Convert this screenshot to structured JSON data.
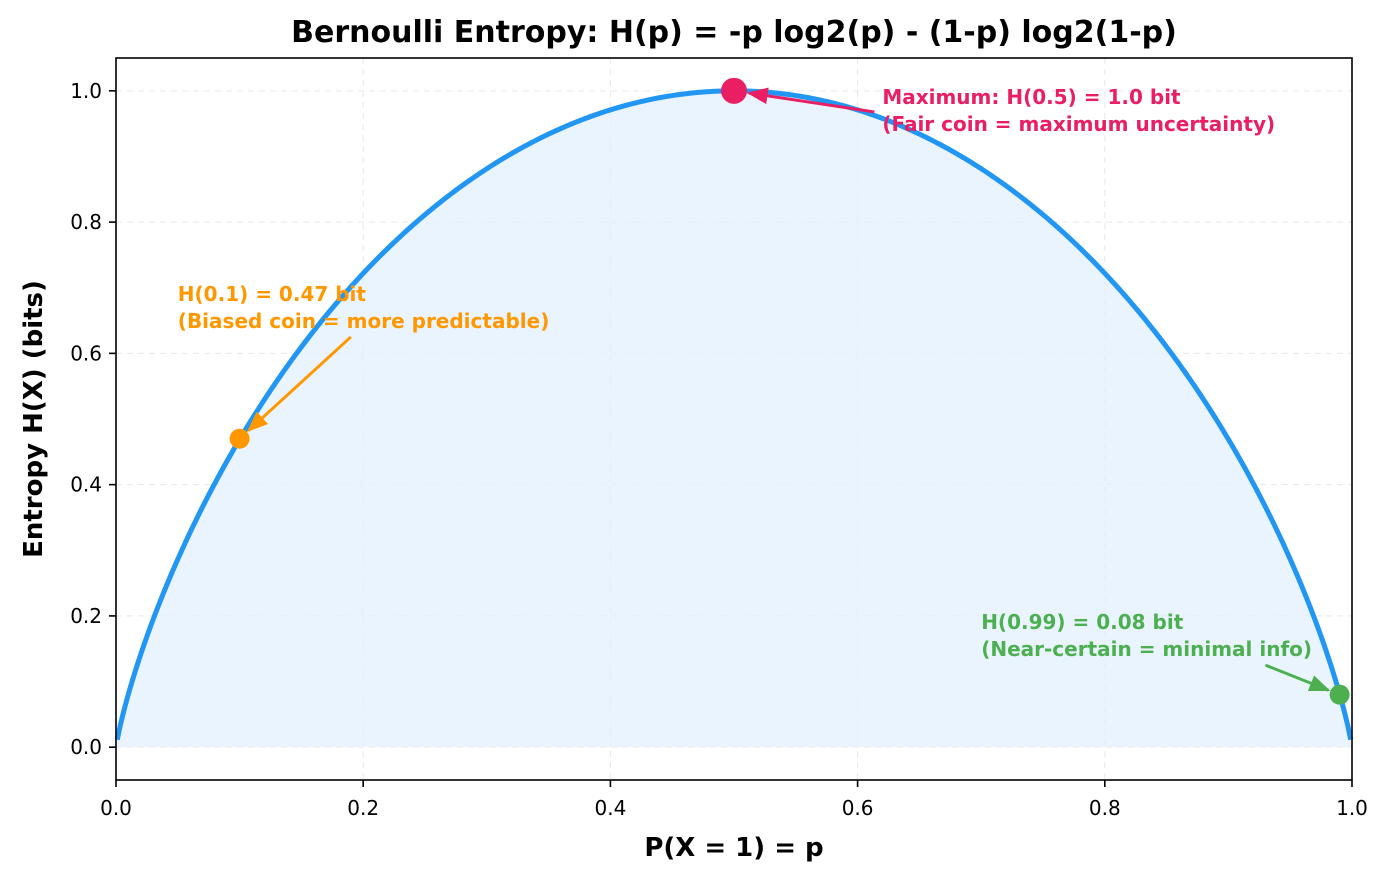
{
  "chart_data": {
    "type": "area",
    "title": "Bernoulli Entropy: H(p) = -p log2(p) - (1-p) log2(1-p)",
    "xlabel": "P(X = 1) = p",
    "ylabel": "Entropy H(X)  (bits)",
    "xlim": [
      0.0,
      1.0
    ],
    "ylim": [
      -0.05,
      1.05
    ],
    "xticks": [
      0.0,
      0.2,
      0.4,
      0.6,
      0.8,
      1.0
    ],
    "xtick_labels": [
      "0.0",
      "0.2",
      "0.4",
      "0.6",
      "0.8",
      "1.0"
    ],
    "yticks": [
      0.0,
      0.2,
      0.4,
      0.6,
      0.8,
      1.0
    ],
    "ytick_labels": [
      "0.0",
      "0.2",
      "0.4",
      "0.6",
      "0.8",
      "1.0"
    ],
    "grid": true,
    "curve": {
      "function": "bernoulli_entropy",
      "p_range": [
        0.001,
        0.999
      ],
      "color": "#2196F3",
      "fill_color": "#e3f0fd"
    },
    "annotations": [
      {
        "id": "max",
        "p": 0.5,
        "h": 1.0,
        "color": "#E91E63",
        "lines": [
          "Maximum: H(0.5) = 1.0 bit",
          "(Fair coin = maximum uncertainty)"
        ],
        "text_xy": [
          0.62,
          0.98
        ]
      },
      {
        "id": "biased",
        "p": 0.1,
        "h": 0.47,
        "color": "#FF9800",
        "lines": [
          "H(0.1) = 0.47 bit",
          "(Biased coin = more predictable)"
        ],
        "text_xy": [
          0.05,
          0.68
        ]
      },
      {
        "id": "near-certain",
        "p": 0.99,
        "h": 0.08,
        "color": "#4CAF50",
        "lines": [
          "H(0.99) = 0.08 bit",
          "(Near-certain = minimal info)"
        ],
        "text_xy": [
          0.7,
          0.18
        ]
      }
    ]
  }
}
